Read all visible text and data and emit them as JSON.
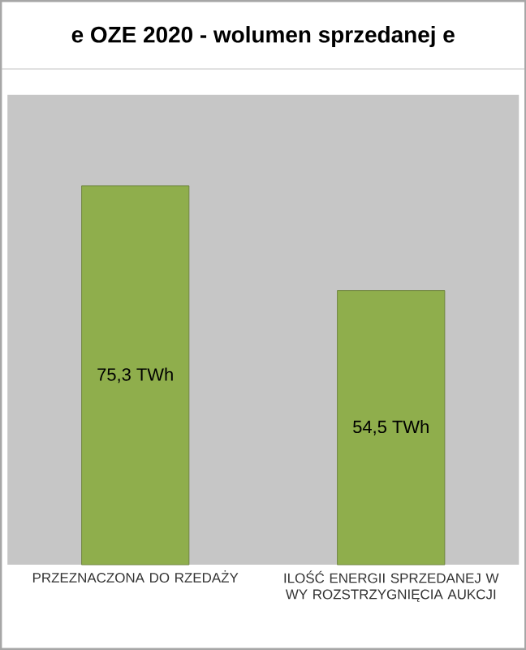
{
  "chart_data": {
    "type": "bar",
    "title": "e OZE 2020 - wolumen sprzedanej e",
    "categories": [
      "PRZEZNACZONA DO RZEDAŻY",
      "ILOŚĆ ENERGII SPRZEDANEJ W WY ROZSTRZYGNIĘCIA AUKCJI"
    ],
    "values": [
      75.3,
      54.5
    ],
    "value_labels": [
      "75,3 TWh",
      "54,5 TWh"
    ],
    "color": "#8fae4c"
  }
}
